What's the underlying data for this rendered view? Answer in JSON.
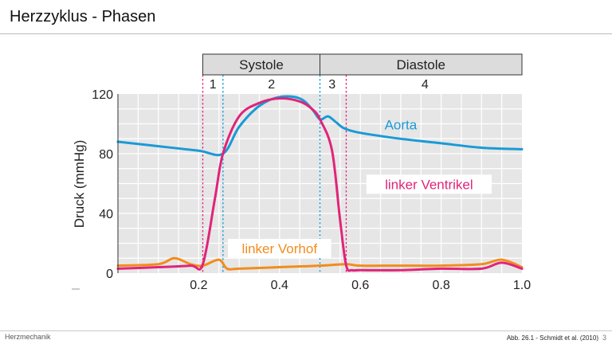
{
  "slide": {
    "title": "Herzzyklus - Phasen",
    "footer_left": "Herzmechanik",
    "footer_right": "Abb. 26.1 - Schmidt et al. (2010)",
    "page_number": "3"
  },
  "chart_data": {
    "type": "line",
    "title": "",
    "xlabel": "",
    "ylabel": "Druck (mmHg)",
    "xlim": [
      0,
      1.0
    ],
    "ylim": [
      0,
      120
    ],
    "x_ticks": [
      0.2,
      0.4,
      0.6,
      0.8,
      1.0
    ],
    "x_tick_labels": [
      "0.2",
      "0.4",
      "0.6",
      "0.8",
      "1.0"
    ],
    "y_ticks": [
      0,
      40,
      80,
      120
    ],
    "y_tick_labels": [
      "0",
      "40",
      "80",
      "120"
    ],
    "grid": true,
    "phases": [
      {
        "label": "Systole",
        "start": 0.21,
        "end": 0.5
      },
      {
        "label": "Diastole",
        "start": 0.5,
        "end": 1.0
      }
    ],
    "phase_numbers": [
      {
        "label": "1",
        "x": 0.235
      },
      {
        "label": "2",
        "x": 0.38
      },
      {
        "label": "3",
        "x": 0.53
      },
      {
        "label": "4",
        "x": 0.76
      }
    ],
    "markers": [
      {
        "x": 0.21,
        "color": "#e0247a"
      },
      {
        "x": 0.26,
        "color": "#1a9ad6"
      },
      {
        "x": 0.5,
        "color": "#1a9ad6"
      },
      {
        "x": 0.565,
        "color": "#e0247a"
      }
    ],
    "series": [
      {
        "name": "Aorta",
        "color": "#1a9ad6",
        "x": [
          0.0,
          0.1,
          0.2,
          0.26,
          0.3,
          0.35,
          0.4,
          0.45,
          0.48,
          0.5,
          0.52,
          0.54,
          0.56,
          0.6,
          0.7,
          0.8,
          0.9,
          1.0
        ],
        "y": [
          88,
          85,
          82,
          80,
          98,
          112,
          118,
          117,
          110,
          103,
          105,
          101,
          97,
          94,
          90,
          87,
          84,
          83
        ]
      },
      {
        "name": "linker Ventrikel",
        "color": "#e0247a",
        "x": [
          0.0,
          0.1,
          0.18,
          0.21,
          0.24,
          0.26,
          0.3,
          0.35,
          0.4,
          0.45,
          0.48,
          0.5,
          0.53,
          0.55,
          0.565,
          0.58,
          0.6,
          0.7,
          0.8,
          0.9,
          0.95,
          1.0
        ],
        "y": [
          3,
          4,
          5,
          6,
          50,
          80,
          105,
          114,
          117,
          115,
          110,
          103,
          82,
          35,
          5,
          2,
          2,
          2,
          3,
          3,
          7,
          3
        ]
      },
      {
        "name": "linker Vorhof",
        "color": "#f28c1c",
        "x": [
          0.0,
          0.1,
          0.14,
          0.18,
          0.21,
          0.25,
          0.27,
          0.3,
          0.4,
          0.5,
          0.565,
          0.6,
          0.7,
          0.8,
          0.9,
          0.95,
          1.0
        ],
        "y": [
          5,
          6,
          10,
          6,
          5,
          9,
          3,
          3,
          4,
          5,
          6,
          5,
          5,
          5,
          6,
          9,
          4
        ]
      }
    ]
  }
}
